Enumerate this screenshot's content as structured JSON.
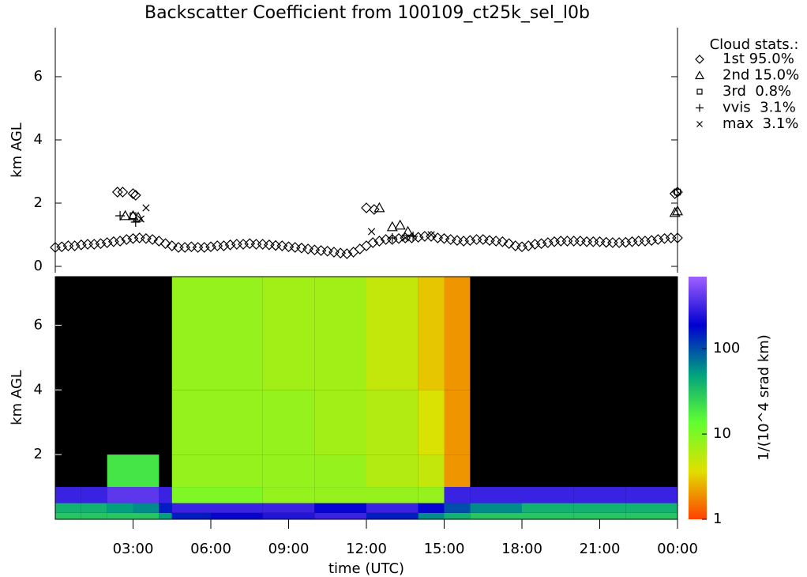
{
  "chart_data": [
    {
      "type": "scatter",
      "title": "Backscatter Coefficient from 100109_ct25k_sel_l0b",
      "y_label": "km AGL",
      "xlim": [
        0,
        24
      ],
      "ylim": [
        -0.2,
        7.55
      ],
      "yticks": [
        0,
        2,
        4,
        6
      ],
      "legend_title": "Cloud stats.:",
      "series": [
        {
          "name": "1st 95.0%",
          "marker": "diamond",
          "color": "#000000",
          "x": [
            0,
            0.25,
            0.5,
            0.75,
            1,
            1.25,
            1.5,
            1.75,
            2,
            2.25,
            2.5,
            2.75,
            3,
            3.25,
            3.5,
            3.75,
            4,
            4.25,
            4.5,
            4.75,
            5,
            5.25,
            5.5,
            5.75,
            6,
            6.25,
            6.5,
            6.75,
            7,
            7.25,
            7.5,
            7.75,
            8,
            8.25,
            8.5,
            8.75,
            9,
            9.25,
            9.5,
            9.75,
            10,
            10.25,
            10.5,
            10.75,
            11,
            11.25,
            11.5,
            11.75,
            12,
            12.25,
            12.5,
            12.75,
            13,
            13.25,
            13.5,
            13.75,
            14,
            14.25,
            14.5,
            14.75,
            15,
            15.25,
            15.5,
            15.75,
            16,
            16.25,
            16.5,
            16.75,
            17,
            17.25,
            17.5,
            17.75,
            18,
            18.25,
            18.5,
            18.75,
            19,
            19.25,
            19.5,
            19.75,
            20,
            20.25,
            20.5,
            20.75,
            21,
            21.25,
            21.5,
            21.75,
            22,
            22.25,
            22.5,
            22.75,
            23,
            23.25,
            23.5,
            23.75,
            24,
            2.4,
            2.6,
            3.0,
            3.1,
            12.0,
            12.3,
            23.9,
            24
          ],
          "values": [
            0.6,
            0.62,
            0.65,
            0.65,
            0.68,
            0.7,
            0.7,
            0.72,
            0.75,
            0.78,
            0.8,
            0.85,
            0.88,
            0.9,
            0.88,
            0.85,
            0.8,
            0.72,
            0.65,
            0.6,
            0.6,
            0.62,
            0.6,
            0.6,
            0.62,
            0.65,
            0.65,
            0.68,
            0.7,
            0.7,
            0.72,
            0.7,
            0.7,
            0.68,
            0.66,
            0.65,
            0.62,
            0.6,
            0.58,
            0.55,
            0.52,
            0.5,
            0.48,
            0.45,
            0.42,
            0.4,
            0.45,
            0.55,
            0.65,
            0.75,
            0.8,
            0.85,
            0.85,
            0.88,
            0.9,
            0.9,
            0.92,
            0.95,
            0.95,
            0.9,
            0.88,
            0.85,
            0.82,
            0.8,
            0.82,
            0.85,
            0.85,
            0.82,
            0.8,
            0.78,
            0.72,
            0.65,
            0.62,
            0.65,
            0.7,
            0.72,
            0.75,
            0.78,
            0.8,
            0.8,
            0.8,
            0.8,
            0.78,
            0.78,
            0.78,
            0.76,
            0.75,
            0.75,
            0.76,
            0.78,
            0.8,
            0.8,
            0.82,
            0.85,
            0.88,
            0.9,
            0.9,
            2.35,
            2.35,
            2.3,
            2.25,
            1.85,
            1.8,
            2.3,
            2.35
          ]
        },
        {
          "name": "2nd 15.0%",
          "marker": "triangle",
          "color": "#000000",
          "x": [
            2.7,
            3.0,
            3.2,
            12.5,
            13.0,
            13.3,
            13.6,
            23.9,
            24
          ],
          "values": [
            1.6,
            1.6,
            1.55,
            1.85,
            1.25,
            1.3,
            1.1,
            1.7,
            1.75
          ]
        },
        {
          "name": "3rd  0.8%",
          "marker": "square",
          "color": "#000000",
          "x": [
            3.0,
            24
          ],
          "values": [
            1.6,
            2.35
          ]
        },
        {
          "name": "vvis  3.1%",
          "marker": "plus",
          "color": "#000000",
          "x": [
            2.5,
            3.1,
            13.0,
            13.8
          ],
          "values": [
            1.6,
            1.4,
            0.9,
            0.95
          ]
        },
        {
          "name": "max  3.1%",
          "marker": "cross",
          "color": "#000000",
          "x": [
            3.5,
            3.3,
            12.2,
            13.5,
            14.5
          ],
          "values": [
            1.85,
            1.5,
            1.1,
            0.9,
            1.0
          ]
        }
      ]
    },
    {
      "type": "heatmap",
      "y_label": "km AGL",
      "x_label": "time (UTC)",
      "xlim": [
        0,
        24
      ],
      "ylim": [
        0,
        7.5
      ],
      "yticks": [
        2,
        4,
        6
      ],
      "xticks": [
        {
          "value": 3,
          "label": "03:00"
        },
        {
          "value": 6,
          "label": "06:00"
        },
        {
          "value": 9,
          "label": "09:00"
        },
        {
          "value": 12,
          "label": "12:00"
        },
        {
          "value": 15,
          "label": "15:00"
        },
        {
          "value": 18,
          "label": "18:00"
        },
        {
          "value": 21,
          "label": "21:00"
        },
        {
          "value": 24,
          "label": "00:00"
        }
      ],
      "x_edges": [
        0,
        1,
        2,
        3,
        4,
        4.5,
        6,
        8,
        10,
        12,
        14,
        15,
        16,
        18,
        20,
        22,
        24
      ],
      "y_edges": [
        0,
        0.2,
        0.5,
        1,
        2,
        4,
        7.5
      ],
      "z": [
        [
          30,
          30,
          30,
          30,
          50,
          150,
          200,
          250,
          300,
          150,
          60,
          40,
          30,
          30,
          30,
          30
        ],
        [
          40,
          40,
          50,
          60,
          150,
          300,
          300,
          300,
          200,
          300,
          200,
          100,
          60,
          40,
          40,
          40
        ],
        [
          300,
          300,
          400,
          400,
          300,
          10,
          10,
          8,
          8,
          8,
          8,
          300,
          300,
          300,
          300,
          300
        ],
        [
          null,
          null,
          20,
          20,
          null,
          8,
          8,
          8,
          8,
          6,
          5,
          2,
          null,
          null,
          null,
          null
        ],
        [
          null,
          null,
          null,
          null,
          null,
          8,
          8,
          8,
          7,
          6,
          4,
          2,
          null,
          null,
          null,
          null
        ],
        [
          null,
          null,
          null,
          null,
          null,
          8,
          8,
          7,
          7,
          5,
          3,
          2,
          null,
          null,
          null,
          null
        ]
      ],
      "background": "#000000",
      "colorbar_label": "1/(10^4 srad km)",
      "clim": [
        1,
        700
      ],
      "cticks": [
        1,
        10,
        100
      ],
      "log_color_scale": true,
      "colormap": [
        "#ff4000",
        "#e0e000",
        "#60ff30",
        "#00a080",
        "#0000d0",
        "#a060ff"
      ]
    }
  ]
}
